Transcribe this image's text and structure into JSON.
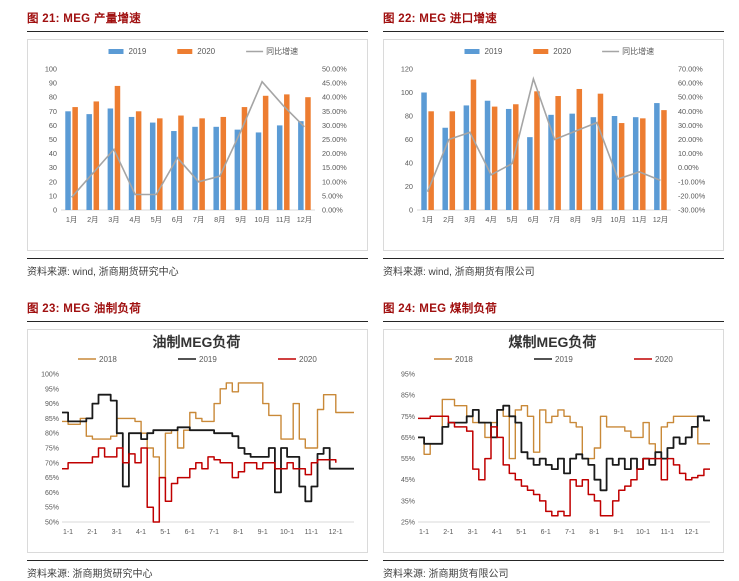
{
  "figures": [
    {
      "title": "图 21: MEG 产量增速",
      "source": "资料来源: wind, 浙商期货研究中心"
    },
    {
      "title": "图 22: MEG 进口增速",
      "source": "资料来源: wind, 浙商期货有限公司"
    },
    {
      "title": "图 23: MEG 油制负荷",
      "source": "资料来源: 浙商期货研究中心"
    },
    {
      "title": "图 24: MEG 煤制负荷",
      "source": "资料来源: 浙商期货有限公司"
    }
  ],
  "colors": {
    "bar_2019": "#5B9BD5",
    "bar_2020": "#ED7D31",
    "growth_line": "#A5A5A5",
    "line_2018": "#C98938",
    "line_2019": "#1A1A1A",
    "line_2020": "#C00000",
    "caption_red": "#A01010",
    "axis_text": "#595959"
  },
  "chart_data": [
    {
      "type": "bar",
      "title": "",
      "legend_position": "top",
      "categories": [
        "1月",
        "2月",
        "3月",
        "4月",
        "5月",
        "6月",
        "7月",
        "8月",
        "9月",
        "10月",
        "11月",
        "12月"
      ],
      "left_axis": {
        "min": 0,
        "max": 100,
        "step": 10
      },
      "right_axis": {
        "min": 0,
        "max": 50,
        "step": 5,
        "format": "0.00%"
      },
      "series": [
        {
          "name": "2019",
          "kind": "bar",
          "color": "#5B9BD5",
          "values": [
            70,
            68,
            72,
            66,
            62,
            56,
            59,
            59,
            57,
            55,
            60,
            63
          ]
        },
        {
          "name": "2020",
          "kind": "bar",
          "color": "#ED7D31",
          "values": [
            73,
            77,
            88,
            70,
            65,
            67,
            65,
            66,
            73,
            81,
            82,
            80
          ]
        },
        {
          "name": "同比增速",
          "kind": "line",
          "color": "#A5A5A5",
          "axis": "right",
          "values": [
            4.5,
            13,
            21.5,
            5.5,
            5.5,
            18.5,
            10,
            12,
            28,
            45.5,
            37,
            29.5
          ]
        }
      ]
    },
    {
      "type": "bar",
      "title": "",
      "legend_position": "top",
      "categories": [
        "1月",
        "2月",
        "3月",
        "4月",
        "5月",
        "6月",
        "7月",
        "8月",
        "9月",
        "10月",
        "11月",
        "12月"
      ],
      "left_axis": {
        "min": 0,
        "max": 120,
        "step": 20
      },
      "right_axis": {
        "min": -30,
        "max": 70,
        "step": 10,
        "format": "0.00%"
      },
      "series": [
        {
          "name": "2019",
          "kind": "bar",
          "color": "#5B9BD5",
          "values": [
            100,
            70,
            89,
            93,
            86,
            62,
            81,
            82,
            79,
            80,
            79,
            91
          ]
        },
        {
          "name": "2020",
          "kind": "bar",
          "color": "#ED7D31",
          "values": [
            84,
            84,
            111,
            88,
            90,
            101,
            97,
            103,
            99,
            74,
            78,
            85
          ]
        },
        {
          "name": "同比增速",
          "kind": "line",
          "color": "#A5A5A5",
          "axis": "right",
          "values": [
            -17,
            20,
            25,
            -5,
            3,
            63,
            20,
            26,
            32,
            -8,
            -3,
            -9
          ]
        }
      ]
    },
    {
      "type": "line",
      "title": "油制MEG负荷",
      "legend_position": "top",
      "x_labels": [
        "1-1",
        "2-1",
        "3-1",
        "4-1",
        "5-1",
        "6-1",
        "7-1",
        "8-1",
        "9-1",
        "10-1",
        "11-1",
        "12-1"
      ],
      "points_per_month": 4,
      "y_axis": {
        "min": 50,
        "max": 100,
        "step": 5,
        "format": "percent"
      },
      "series": [
        {
          "name": "2018",
          "color": "#C98938",
          "width": 1.4,
          "values": [
            84,
            83,
            83,
            85,
            79,
            78,
            78,
            78,
            79,
            85,
            85,
            85,
            84,
            80,
            75,
            72,
            65,
            80,
            81,
            75,
            81,
            87,
            85,
            84,
            84,
            90,
            95,
            97,
            94,
            97,
            97,
            97,
            97,
            90,
            86,
            86,
            78,
            78,
            90,
            78,
            75,
            75,
            88,
            93,
            93,
            87,
            87,
            87
          ]
        },
        {
          "name": "2019",
          "color": "#1A1A1A",
          "width": 1.8,
          "values": [
            87,
            84,
            84,
            84,
            85,
            90,
            93,
            93,
            91,
            80,
            62,
            80,
            80,
            78,
            80,
            81,
            81,
            81,
            81,
            82,
            82,
            81,
            81,
            81,
            81,
            80,
            80,
            80,
            79,
            75,
            73,
            72,
            72,
            72,
            75,
            60,
            75,
            72,
            72,
            62,
            57,
            62,
            73,
            75,
            68,
            68,
            68,
            68
          ]
        },
        {
          "name": "2020",
          "color": "#C00000",
          "width": 1.5,
          "values": [
            68,
            70,
            70,
            70,
            70,
            72,
            75,
            72,
            72,
            75,
            70,
            73,
            70,
            75,
            55,
            50,
            65,
            57,
            63,
            65,
            65,
            68,
            70,
            68,
            72,
            71,
            70,
            70,
            65,
            67,
            70,
            70,
            68,
            70,
            70,
            68,
            68,
            70,
            68,
            68,
            66,
            70,
            71,
            71,
            71,
            70,
            null,
            null
          ]
        }
      ]
    },
    {
      "type": "line",
      "title": "煤制MEG负荷",
      "legend_position": "top",
      "x_labels": [
        "1-1",
        "2-1",
        "3-1",
        "4-1",
        "5-1",
        "6-1",
        "7-1",
        "8-1",
        "9-1",
        "10-1",
        "11-1",
        "12-1"
      ],
      "points_per_month": 4,
      "y_axis": {
        "min": 25,
        "max": 95,
        "step": 10,
        "format": "percent"
      },
      "series": [
        {
          "name": "2018",
          "color": "#C98938",
          "width": 1.4,
          "values": [
            65,
            57,
            62,
            62,
            83,
            83,
            80,
            80,
            75,
            72,
            72,
            65,
            72,
            78,
            75,
            55,
            78,
            80,
            75,
            58,
            78,
            72,
            75,
            78,
            75,
            72,
            70,
            55,
            55,
            60,
            75,
            70,
            70,
            70,
            68,
            65,
            65,
            72,
            62,
            58,
            70,
            72,
            75,
            75,
            75,
            75,
            62,
            62
          ]
        },
        {
          "name": "2019",
          "color": "#1A1A1A",
          "width": 1.8,
          "values": [
            65,
            62,
            62,
            62,
            70,
            72,
            72,
            72,
            75,
            78,
            72,
            72,
            65,
            78,
            80,
            75,
            72,
            58,
            55,
            52,
            55,
            52,
            50,
            55,
            48,
            55,
            57,
            55,
            52,
            45,
            40,
            55,
            52,
            55,
            50,
            55,
            50,
            55,
            52,
            58,
            55,
            60,
            65,
            62,
            65,
            70,
            75,
            73
          ]
        },
        {
          "name": "2020",
          "color": "#C00000",
          "width": 1.5,
          "values": [
            74,
            74,
            75,
            75,
            75,
            72,
            70,
            70,
            68,
            50,
            45,
            55,
            70,
            65,
            52,
            48,
            45,
            42,
            40,
            38,
            35,
            30,
            28,
            30,
            28,
            45,
            42,
            45,
            38,
            35,
            28,
            28,
            35,
            40,
            42,
            45,
            50,
            55,
            55,
            55,
            45,
            55,
            52,
            48,
            45,
            46,
            47,
            50
          ]
        }
      ]
    }
  ]
}
